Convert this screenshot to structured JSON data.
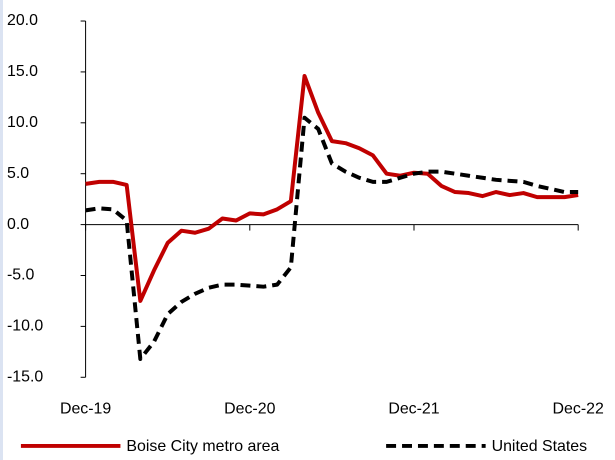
{
  "chart_data": {
    "type": "line",
    "categories": [
      "Dec-19",
      null,
      null,
      null,
      null,
      null,
      null,
      null,
      null,
      null,
      null,
      null,
      "Dec-20",
      null,
      null,
      null,
      null,
      null,
      null,
      null,
      null,
      null,
      null,
      null,
      "Dec-21",
      null,
      null,
      null,
      null,
      null,
      null,
      null,
      null,
      null,
      null,
      null,
      "Dec-22"
    ],
    "series": [
      {
        "name": "Boise City metro area",
        "color": "#c00000",
        "line_style": "solid",
        "values": [
          4.0,
          4.2,
          4.2,
          3.9,
          -7.5,
          -4.5,
          -1.8,
          -0.6,
          -0.8,
          -0.4,
          0.6,
          0.4,
          1.1,
          1.0,
          1.5,
          2.3,
          14.6,
          11.0,
          8.2,
          8.0,
          7.5,
          6.8,
          5.0,
          4.8,
          5.1,
          5.0,
          3.8,
          3.2,
          3.1,
          2.8,
          3.2,
          2.9,
          3.1,
          2.7,
          2.7,
          2.7,
          2.9
        ]
      },
      {
        "name": "United States",
        "color": "#000000",
        "line_style": "dashed",
        "values": [
          1.4,
          1.6,
          1.5,
          0.4,
          -13.2,
          -11.5,
          -8.8,
          -7.6,
          -6.8,
          -6.2,
          -5.9,
          -5.9,
          -6.0,
          -6.1,
          -5.9,
          -4.2,
          10.5,
          9.4,
          6.0,
          5.2,
          4.6,
          4.2,
          4.2,
          4.6,
          5.0,
          5.2,
          5.2,
          5.0,
          4.8,
          4.6,
          4.4,
          4.3,
          4.2,
          3.8,
          3.5,
          3.2,
          3.2
        ]
      }
    ],
    "ylim": [
      -15,
      20
    ],
    "yticks": [
      {
        "value": -15,
        "label": "-15.0"
      },
      {
        "value": -10,
        "label": "-10.0"
      },
      {
        "value": -5,
        "label": "-5.0"
      },
      {
        "value": 0,
        "label": "0.0"
      },
      {
        "value": 5,
        "label": "5.0"
      },
      {
        "value": 10,
        "label": "10.0"
      },
      {
        "value": 15,
        "label": "15.0"
      },
      {
        "value": 20,
        "label": "20.0"
      }
    ],
    "grid": false,
    "legend": "bottom"
  }
}
